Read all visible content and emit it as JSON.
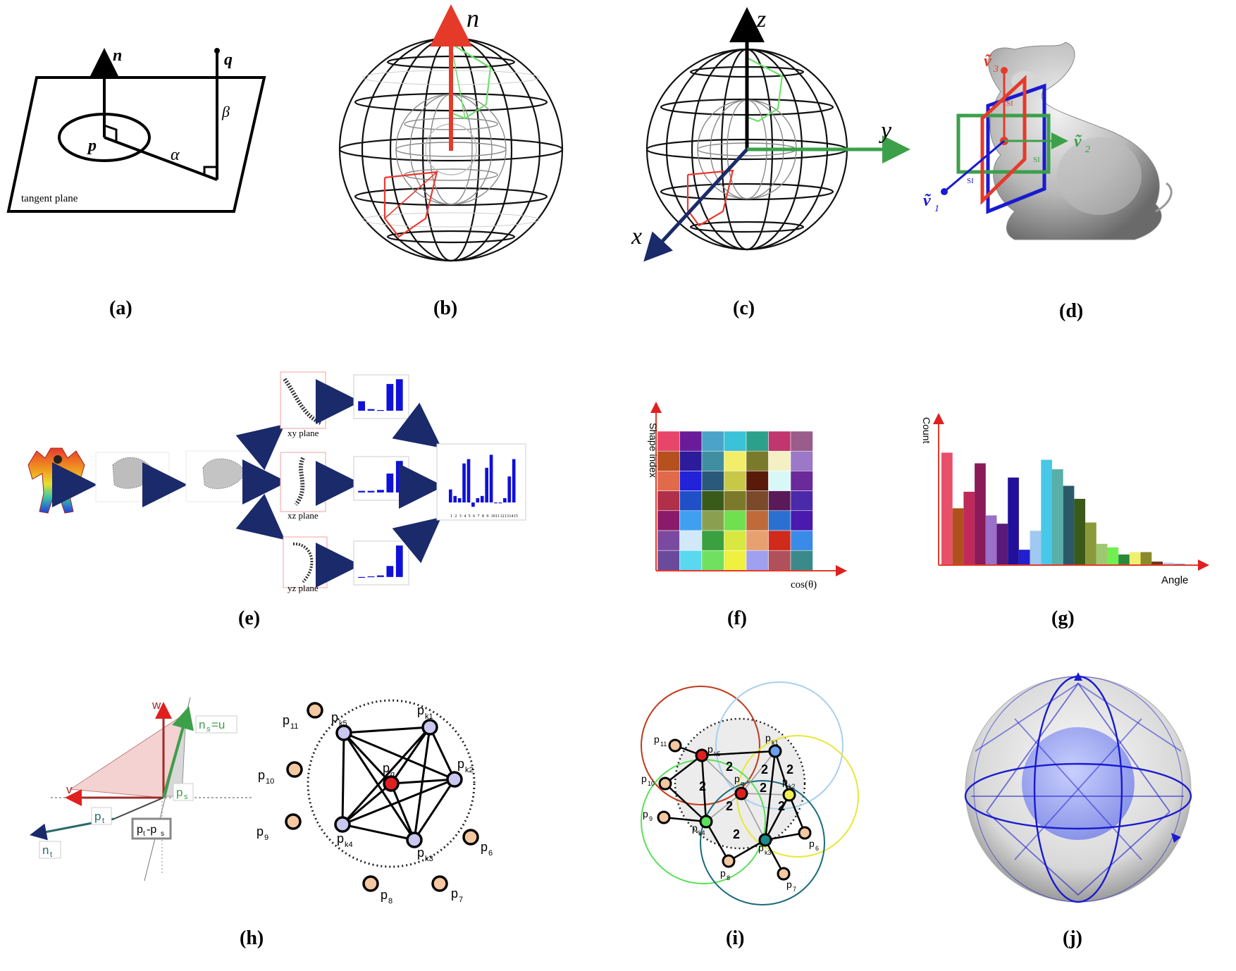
{
  "captions": {
    "a": "(a)",
    "b": "(b)",
    "c": "(c)",
    "d": "(d)",
    "e": "(e)",
    "f": "(f)",
    "g": "(g)",
    "h": "(h)",
    "i": "(i)",
    "j": "(j)"
  },
  "panel_a": {
    "n": "n",
    "q": "q",
    "p": "p",
    "alpha": "α",
    "beta": "β",
    "plane_label": "tangent plane"
  },
  "panel_b": {
    "n": "n"
  },
  "panel_c": {
    "x": "x",
    "y": "y",
    "z": "z"
  },
  "panel_d": {
    "v1": "ṽ",
    "v1_sub": "1",
    "v2": "ṽ",
    "v2_sub": "2",
    "v3": "ṽ",
    "v3_sub": "3",
    "si": "SI"
  },
  "panel_e": {
    "xy": "xy plane",
    "xz": "xz plane",
    "yz": "yz plane",
    "xy_bars": [
      0.3,
      0.05,
      0.02,
      0.85,
      1.0
    ],
    "xz_bars": [
      0.05,
      0.05,
      0.08,
      0.6,
      1.0
    ],
    "yz_bars": [
      0.0,
      0.02,
      0.05,
      0.35,
      1.0
    ],
    "combined_bars": [
      0.3,
      0.15,
      0.1,
      0.9,
      1.0,
      -0.1,
      0.1,
      0.15,
      0.8,
      1.1,
      0.0,
      0.0,
      0.1,
      0.6,
      1.0
    ],
    "combined_ticks": [
      "1",
      "2",
      "3",
      "4",
      "5",
      "6",
      "7",
      "8",
      "9",
      "10",
      "11",
      "12",
      "13",
      "14",
      "15"
    ]
  },
  "panel_f": {
    "ylabel": "Shape index",
    "xlabel": "cos(θ)",
    "grid": [
      [
        "#e8456b",
        "#6a1b9a",
        "#4aa3c8",
        "#3ac2d8",
        "#2ba08a",
        "#c0366e",
        "#9a5c8a"
      ],
      [
        "#b5501f",
        "#2c1b9a",
        "#3f8fa0",
        "#f3ee6a",
        "#7a7a2c",
        "#f5f0c4",
        "#9b78c8"
      ],
      [
        "#e06a4a",
        "#2222d8",
        "#2a5a7a",
        "#c8c848",
        "#5a1a0a",
        "#d8f8f8",
        "#6a2a9a"
      ],
      [
        "#b0304a",
        "#2050c8",
        "#3a5a1a",
        "#7a7a2a",
        "#7a4a2a",
        "#5a1a5a",
        "#4a2aa8"
      ],
      [
        "#8a1a6a",
        "#40a0f0",
        "#8aa050",
        "#70e050",
        "#c06a3a",
        "#2a70d0",
        "#4a1ab0"
      ],
      [
        "#7a4aa0",
        "#d0e8f8",
        "#3aa040",
        "#d8e840",
        "#e8a070",
        "#d02a1a",
        "#3a8ae8"
      ],
      [
        "#6a4a9a",
        "#5ad8f0",
        "#70e060",
        "#f0f040",
        "#a0a0f0",
        "#b0505a",
        "#3a8a8a"
      ]
    ]
  },
  "panel_g": {
    "ylabel": "Count",
    "xlabel": "Angle",
    "bars": [
      {
        "v": 0.95,
        "c": "#e8506a"
      },
      {
        "v": 0.48,
        "c": "#b0501e"
      },
      {
        "v": 0.62,
        "c": "#c02a5a"
      },
      {
        "v": 0.86,
        "c": "#8a1a5a"
      },
      {
        "v": 0.42,
        "c": "#9a70c8"
      },
      {
        "v": 0.35,
        "c": "#5a1a7a"
      },
      {
        "v": 0.74,
        "c": "#22109a"
      },
      {
        "v": 0.13,
        "c": "#2020d0"
      },
      {
        "v": 0.29,
        "c": "#a0c8f0"
      },
      {
        "v": 0.89,
        "c": "#48c8e8"
      },
      {
        "v": 0.81,
        "c": "#58b0a8"
      },
      {
        "v": 0.67,
        "c": "#2a5a6a"
      },
      {
        "v": 0.56,
        "c": "#3a5a1a"
      },
      {
        "v": 0.36,
        "c": "#8a9a3a"
      },
      {
        "v": 0.18,
        "c": "#a0c870"
      },
      {
        "v": 0.15,
        "c": "#70f050"
      },
      {
        "v": 0.09,
        "c": "#2a8a3a"
      },
      {
        "v": 0.11,
        "c": "#f0f070"
      },
      {
        "v": 0.11,
        "c": "#8a8a2a"
      },
      {
        "v": 0.03,
        "c": "#6a3a1a"
      },
      {
        "v": 0.02,
        "c": "#b0c8f0"
      },
      {
        "v": 0.01,
        "c": "#3a6ae0"
      }
    ]
  },
  "panel_h": {
    "w": "w",
    "v": "v",
    "ns_u": "n",
    "ns_sub": "s",
    "ns_eq": "=u",
    "ps": "p",
    "ps_sub": "s",
    "pt": "p",
    "pt_sub": "t",
    "nt": "n",
    "nt_sub": "t",
    "ptps": "p",
    "ptps_sub1": "t",
    "ptps_dash": "-p",
    "ptps_sub2": "s",
    "points": [
      {
        "l": "p",
        "s": "11"
      },
      {
        "l": "p",
        "s": "10"
      },
      {
        "l": "p",
        "s": "9"
      },
      {
        "l": "p",
        "s": "8"
      },
      {
        "l": "p",
        "s": "7"
      },
      {
        "l": "p",
        "s": "6"
      },
      {
        "l": "p",
        "s": "k5"
      },
      {
        "l": "p",
        "s": "k1"
      },
      {
        "l": "p",
        "s": "k2"
      },
      {
        "l": "p",
        "s": "k3"
      },
      {
        "l": "p",
        "s": "k4"
      },
      {
        "l": "p",
        "s": "q"
      }
    ]
  },
  "panel_i": {
    "twos": [
      "2",
      "2",
      "2",
      "2",
      "2",
      "2",
      "2",
      "2"
    ],
    "points": [
      {
        "l": "p",
        "s": "11"
      },
      {
        "l": "p",
        "s": "k5"
      },
      {
        "l": "p",
        "s": "k1"
      },
      {
        "l": "p",
        "s": "10"
      },
      {
        "l": "p",
        "s": "q"
      },
      {
        "l": "p",
        "s": "k2"
      },
      {
        "l": "p",
        "s": "9"
      },
      {
        "l": "p",
        "s": "k4"
      },
      {
        "l": "p",
        "s": "k3"
      },
      {
        "l": "p",
        "s": "6"
      },
      {
        "l": "p",
        "s": "8"
      },
      {
        "l": "p",
        "s": "7"
      }
    ]
  }
}
